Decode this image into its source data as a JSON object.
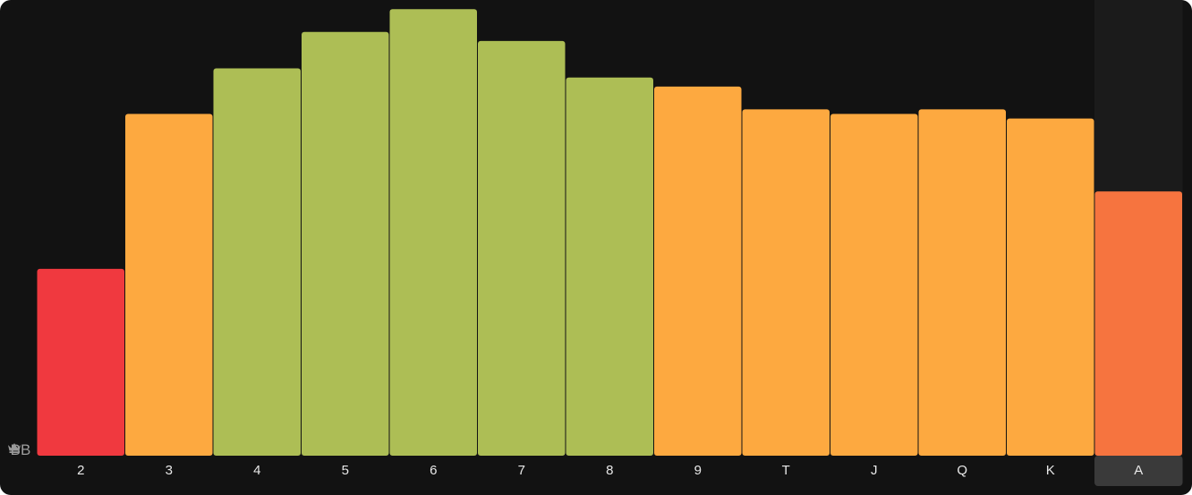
{
  "position": {
    "label": "BB",
    "icon": "crown-icon"
  },
  "colors": {
    "background": "#121212",
    "selected_column_bg": "#1b1b1b",
    "selected_tick_bg": "#3a3a3a",
    "red": "#f0393f",
    "orange": "#fda940",
    "olive_green": "#adbe55",
    "deep_orange": "#f6743f"
  },
  "chart_data": {
    "type": "bar",
    "categories": [
      "2",
      "3",
      "4",
      "5",
      "6",
      "7",
      "8",
      "9",
      "T",
      "J",
      "Q",
      "K",
      "A"
    ],
    "values": [
      41,
      75,
      85,
      93,
      98,
      91,
      83,
      81,
      76,
      75,
      76,
      74,
      58
    ],
    "bar_colors": [
      "red",
      "orange",
      "olive_green",
      "olive_green",
      "olive_green",
      "olive_green",
      "olive_green",
      "orange",
      "orange",
      "orange",
      "orange",
      "orange",
      "deep_orange"
    ],
    "selected_category": "A",
    "ylim": [
      0,
      100
    ],
    "grid": false,
    "legend": "none",
    "xlabel": "",
    "ylabel": ""
  }
}
